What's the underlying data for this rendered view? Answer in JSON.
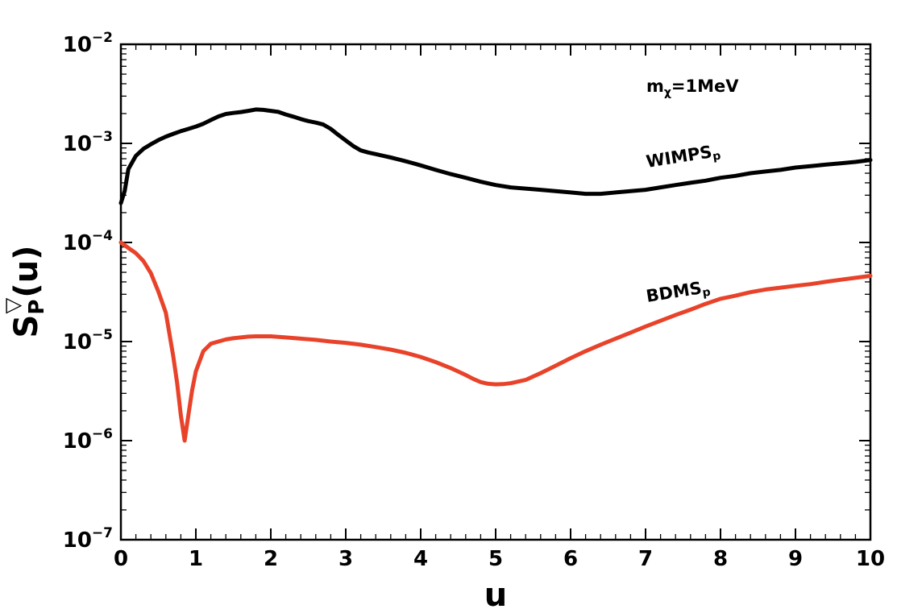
{
  "chart_data": {
    "type": "line",
    "xlabel": "u",
    "ylabel": {
      "base": "S",
      "sup": "▽",
      "sub": "P",
      "suffix": "(u)"
    },
    "xlim": [
      0,
      10
    ],
    "ylim": [
      1e-07,
      0.01
    ],
    "yscale": "log",
    "x_ticks": [
      "0",
      "1",
      "2",
      "3",
      "4",
      "5",
      "6",
      "7",
      "8",
      "9",
      "10"
    ],
    "y_ticks": [
      {
        "base": "10",
        "exp": "−2"
      },
      {
        "base": "10",
        "exp": "−3"
      },
      {
        "base": "10",
        "exp": "−4"
      },
      {
        "base": "10",
        "exp": "−5"
      },
      {
        "base": "10",
        "exp": "−6"
      },
      {
        "base": "10",
        "exp": "−7"
      }
    ],
    "annotation": {
      "main": "m",
      "sub": "χ",
      "rest": "=1MeV"
    },
    "series": [
      {
        "name": "WIMPS",
        "name_sub": "p",
        "color": "#000000",
        "x": [
          0,
          0.05,
          0.1,
          0.2,
          0.3,
          0.4,
          0.5,
          0.6,
          0.7,
          0.8,
          0.9,
          1.0,
          1.1,
          1.2,
          1.3,
          1.4,
          1.5,
          1.6,
          1.7,
          1.8,
          1.9,
          2.0,
          2.1,
          2.2,
          2.3,
          2.4,
          2.5,
          2.6,
          2.7,
          2.8,
          2.9,
          3.0,
          3.1,
          3.2,
          3.3,
          3.4,
          3.5,
          3.6,
          3.7,
          3.8,
          3.9,
          4.0,
          4.2,
          4.4,
          4.6,
          4.8,
          5.0,
          5.2,
          5.4,
          5.6,
          5.8,
          6.0,
          6.2,
          6.4,
          6.6,
          6.8,
          7.0,
          7.2,
          7.4,
          7.6,
          7.8,
          8.0,
          8.2,
          8.4,
          8.6,
          8.8,
          9.0,
          9.2,
          9.4,
          9.6,
          9.8,
          10.0
        ],
        "y": [
          0.00025,
          0.00033,
          0.00055,
          0.00075,
          0.00088,
          0.00098,
          0.00108,
          0.00117,
          0.00125,
          0.00133,
          0.0014,
          0.00148,
          0.00158,
          0.00172,
          0.00187,
          0.00198,
          0.00203,
          0.00207,
          0.00213,
          0.0022,
          0.00218,
          0.00213,
          0.00208,
          0.00196,
          0.00186,
          0.00176,
          0.00168,
          0.00162,
          0.00155,
          0.0014,
          0.00122,
          0.00107,
          0.00094,
          0.00085,
          0.00081,
          0.00078,
          0.00075,
          0.00072,
          0.00069,
          0.00066,
          0.00063,
          0.0006,
          0.00054,
          0.00049,
          0.00045,
          0.00041,
          0.00038,
          0.00036,
          0.00035,
          0.00034,
          0.00033,
          0.00032,
          0.00031,
          0.00031,
          0.00032,
          0.00033,
          0.00034,
          0.00036,
          0.00038,
          0.0004,
          0.00042,
          0.00045,
          0.00047,
          0.0005,
          0.00052,
          0.00054,
          0.00057,
          0.00059,
          0.00061,
          0.00063,
          0.00065,
          0.00068
        ]
      },
      {
        "name": "BDMS",
        "name_sub": "p",
        "color": "#e8432a",
        "x": [
          0,
          0.1,
          0.2,
          0.3,
          0.4,
          0.5,
          0.6,
          0.7,
          0.75,
          0.8,
          0.85,
          0.9,
          0.95,
          1.0,
          1.1,
          1.2,
          1.3,
          1.4,
          1.5,
          1.6,
          1.7,
          1.8,
          1.9,
          2.0,
          2.2,
          2.4,
          2.6,
          2.8,
          3.0,
          3.2,
          3.4,
          3.6,
          3.8,
          4.0,
          4.2,
          4.4,
          4.6,
          4.7,
          4.8,
          4.9,
          5.0,
          5.1,
          5.2,
          5.4,
          5.6,
          5.8,
          6.0,
          6.2,
          6.4,
          6.6,
          6.8,
          7.0,
          7.2,
          7.4,
          7.6,
          7.8,
          8.0,
          8.2,
          8.4,
          8.6,
          8.8,
          9.0,
          9.2,
          9.4,
          9.6,
          9.8,
          10.0
        ],
        "y": [
          0.0001,
          8.8e-05,
          7.8e-05,
          6.5e-05,
          4.9e-05,
          3.2e-05,
          1.95e-05,
          7e-06,
          3.8e-06,
          1.8e-06,
          1e-06,
          1.8e-06,
          3.2e-06,
          5e-06,
          8e-06,
          9.5e-06,
          1e-05,
          1.05e-05,
          1.08e-05,
          1.1e-05,
          1.12e-05,
          1.13e-05,
          1.13e-05,
          1.13e-05,
          1.1e-05,
          1.07e-05,
          1.04e-05,
          1e-05,
          9.7e-06,
          9.3e-06,
          8.8e-06,
          8.3e-06,
          7.7e-06,
          7e-06,
          6.2e-06,
          5.4e-06,
          4.6e-06,
          4.2e-06,
          3.9e-06,
          3.75e-06,
          3.7e-06,
          3.72e-06,
          3.8e-06,
          4.1e-06,
          4.8e-06,
          5.7e-06,
          6.8e-06,
          8e-06,
          9.3e-06,
          1.07e-05,
          1.23e-05,
          1.42e-05,
          1.62e-05,
          1.85e-05,
          2.1e-05,
          2.4e-05,
          2.7e-05,
          2.9e-05,
          3.15e-05,
          3.35e-05,
          3.5e-05,
          3.65e-05,
          3.8e-05,
          4e-05,
          4.2e-05,
          4.4e-05,
          4.6e-05
        ]
      }
    ],
    "grid": false,
    "legend": "inline labels"
  }
}
